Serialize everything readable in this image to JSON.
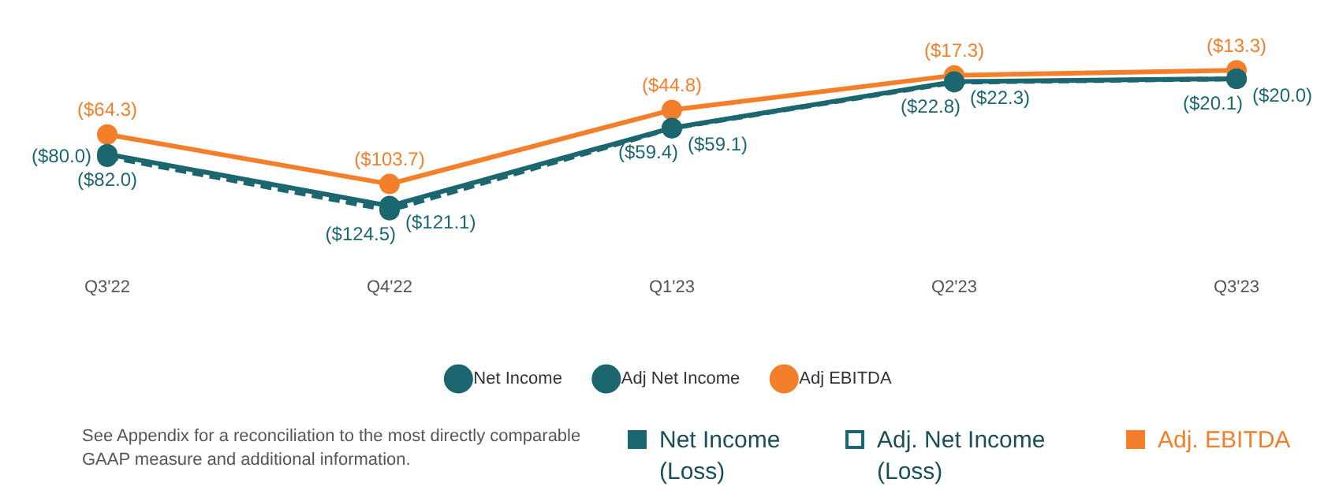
{
  "chart_data": {
    "type": "line",
    "categories": [
      "Q3'22",
      "Q4'22",
      "Q1'23",
      "Q2'23",
      "Q3'23"
    ],
    "series": [
      {
        "name": "Net Income",
        "color": "#1c6670",
        "line_style": "solid",
        "values": [
          -80.0,
          -121.1,
          -59.1,
          -22.3,
          -20.0
        ],
        "value_labels": [
          "($80.0)",
          "($121.1)",
          "($59.1)",
          "($22.3)",
          "($20.0)"
        ]
      },
      {
        "name": "Adj Net Income",
        "color": "#1c6670",
        "line_style": "dashed",
        "values": [
          -82.0,
          -124.5,
          -59.4,
          -22.8,
          -20.1
        ],
        "value_labels": [
          "($82.0)",
          "($124.5)",
          "($59.4)",
          "($22.8)",
          "($20.1)"
        ]
      },
      {
        "name": "Adj EBITDA",
        "color": "#f47f2a",
        "line_style": "solid",
        "values": [
          -64.3,
          -103.7,
          -44.8,
          -17.3,
          -13.3
        ],
        "value_labels": [
          "($64.3)",
          "($103.7)",
          "($44.8)",
          "($17.3)",
          "($13.3)"
        ]
      }
    ],
    "marker": "circle",
    "grid": false,
    "legend": "bottom",
    "tick_labels": "x",
    "annotations": [
      "See Appendix for a reconciliation to the most directly comparable GAAP measure and additional information.",
      "Net Income (Loss)",
      "Adj. Net Income (Loss)",
      "Adj. EBITDA"
    ]
  }
}
